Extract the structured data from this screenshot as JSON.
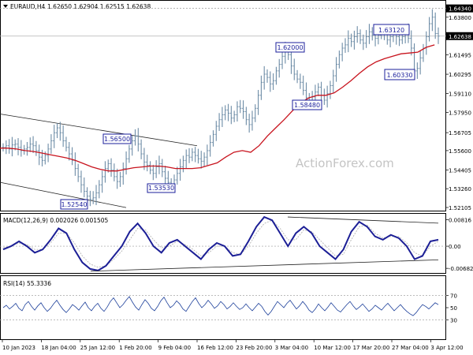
{
  "header": {
    "symbol": "EURAUD,H4",
    "ohlc": "1.62650 1.62904 1.62515 1.62638"
  },
  "watermark": "ActionForex.com",
  "chart_data": [
    {
      "type": "line",
      "name": "price",
      "xlabel": "",
      "ylabel": "",
      "ylim": [
        1.5196,
        1.6476
      ],
      "y_ticks": [
        "1.64340",
        "1.63800",
        "1.61495",
        "1.60295",
        "1.59110",
        "1.57950",
        "1.56705",
        "1.55600",
        "1.54405",
        "1.53260",
        "1.52105"
      ],
      "highlight_ticks": [
        "1.64340",
        "1.62638"
      ],
      "current_price": "1.62638",
      "current_price_value": 1.62638,
      "ref_level": 1.6434,
      "series": [
        {
          "values": [
            1.558,
            1.559,
            1.557,
            1.5595,
            1.56,
            1.558,
            1.556,
            1.557,
            1.558,
            1.56,
            1.559,
            1.556,
            1.552,
            1.55,
            1.553,
            1.557,
            1.562,
            1.567,
            1.57,
            1.567,
            1.562,
            1.558,
            1.554,
            1.55,
            1.545,
            1.54,
            1.535,
            1.531,
            1.528,
            1.526,
            1.527,
            1.53,
            1.535,
            1.54,
            1.545,
            1.548,
            1.544,
            1.54,
            1.537,
            1.54,
            1.545,
            1.551,
            1.557,
            1.562,
            1.565,
            1.56,
            1.554,
            1.549,
            1.547,
            1.544,
            1.542,
            1.546,
            1.548,
            1.543,
            1.539,
            1.5365,
            1.5355,
            1.538,
            1.542,
            1.546,
            1.55,
            1.553,
            1.552,
            1.555,
            1.553,
            1.551,
            1.5495,
            1.552,
            1.556,
            1.561,
            1.566,
            1.571,
            1.575,
            1.578,
            1.581,
            1.579,
            1.576,
            1.578,
            1.583,
            1.582,
            1.58,
            1.575,
            1.572,
            1.576,
            1.582,
            1.59,
            1.598,
            1.603,
            1.601,
            1.597,
            1.599,
            1.605,
            1.609,
            1.614,
            1.618,
            1.615,
            1.608,
            1.603,
            1.6,
            1.598,
            1.593,
            1.5885,
            1.586,
            1.589,
            1.592,
            1.595,
            1.59,
            1.587,
            1.591,
            1.596,
            1.602,
            1.609,
            1.615,
            1.619,
            1.621,
            1.625,
            1.623,
            1.626,
            1.628,
            1.624,
            1.622,
            1.626,
            1.629,
            1.627,
            1.625,
            1.627,
            1.63,
            1.628,
            1.624,
            1.626,
            1.628,
            1.626,
            1.624,
            1.626,
            1.63,
            1.625,
            1.619,
            1.605,
            1.6065,
            1.613,
            1.619,
            1.626,
            1.634,
            1.638,
            1.628,
            1.6264
          ]
        },
        {
          "name": "moving-average",
          "values": [
            1.5575,
            1.5575,
            1.557,
            1.556,
            1.5555,
            1.5545,
            1.5535,
            1.5525,
            1.5515,
            1.55,
            1.548,
            1.546,
            1.5445,
            1.5435,
            1.5435,
            1.5445,
            1.5455,
            1.546,
            1.5465,
            1.5465,
            1.546,
            1.545,
            1.545,
            1.545,
            1.5455,
            1.547,
            1.5485,
            1.552,
            1.555,
            1.556,
            1.555,
            1.559,
            1.565,
            1.57,
            1.575,
            1.5805,
            1.5855,
            1.5885,
            1.59,
            1.59,
            1.5915,
            1.595,
            1.599,
            1.6035,
            1.6075,
            1.6105,
            1.6125,
            1.614,
            1.6155,
            1.616,
            1.6165,
            1.6195,
            1.621
          ]
        }
      ],
      "ma_x_start": 0,
      "ma_x_step": 10.6,
      "channel": {
        "upper": [
          [
            0,
            1.5785
          ],
          [
            250,
            1.559
          ]
        ],
        "lower": [
          [
            0,
            1.5365
          ],
          [
            160,
            1.521
          ]
        ]
      },
      "annotations": [
        {
          "label": "1.63120",
          "price": 1.6312
        },
        {
          "label": "1.62000",
          "price": 1.62
        },
        {
          "label": "1.60330",
          "price": 1.6033
        },
        {
          "label": "1.58480",
          "price": 1.5848
        },
        {
          "label": "1.56500",
          "price": 1.565
        },
        {
          "label": "1.53530",
          "price": 1.5353
        },
        {
          "label": "1.52540",
          "price": 1.5254
        }
      ],
      "x_ticks": [
        "10 Jan 2023",
        "18 Jan 04:00",
        "25 Jan 12:00",
        "1 Feb 20:00",
        "9 Feb 04:00",
        "16 Feb 12:00",
        "23 Feb 20:00",
        "3 Mar 04:00",
        "10 Mar 12:00",
        "17 Mar 20:00",
        "27 Mar 04:00",
        "3 Apr 12:00"
      ]
    },
    {
      "type": "line",
      "name": "macd",
      "label": "MACD(12,26,9) 0.002026 0.001505",
      "ylim": [
        -0.008,
        0.0095
      ],
      "y_ticks": [
        "0.00816",
        "0.00",
        "-0.006821"
      ],
      "series": [
        {
          "values": [
            -0.001,
            0.0,
            0.0015,
            0.0,
            -0.002,
            -0.001,
            0.002,
            0.0055,
            0.004,
            -0.001,
            -0.005,
            -0.007,
            -0.0075,
            -0.006,
            -0.003,
            0.0,
            0.0045,
            0.007,
            0.004,
            0.0,
            -0.002,
            0.001,
            0.002,
            0.0,
            -0.002,
            -0.004,
            -0.001,
            0.001,
            0.0,
            -0.003,
            -0.0025,
            0.0015,
            0.006,
            0.009,
            0.008,
            0.004,
            0.0,
            0.004,
            0.006,
            0.004,
            0.0,
            -0.002,
            -0.004,
            -0.001,
            0.0045,
            0.0075,
            0.006,
            0.003,
            0.002,
            0.0035,
            0.0025,
            0.0,
            -0.004,
            -0.003,
            0.0015,
            0.002
          ]
        },
        {
          "values": [
            -0.0005,
            0.0,
            0.001,
            0.0005,
            -0.001,
            -0.001,
            0.001,
            0.004,
            0.004,
            0.001,
            -0.003,
            -0.0055,
            -0.0065,
            -0.006,
            -0.004,
            -0.0015,
            0.002,
            0.0055,
            0.005,
            0.002,
            -0.0005,
            0.0,
            0.0015,
            0.0005,
            -0.001,
            -0.003,
            -0.002,
            0.0,
            0.0,
            -0.002,
            -0.0025,
            0.0,
            0.004,
            0.007,
            0.008,
            0.0055,
            0.002,
            0.002,
            0.005,
            0.0045,
            0.002,
            -0.0005,
            -0.003,
            -0.0025,
            0.002,
            0.006,
            0.0065,
            0.004,
            0.0025,
            0.003,
            0.003,
            0.001,
            -0.002,
            -0.003,
            0.0,
            0.0015
          ]
        }
      ],
      "trendlines": [
        [
          [
            115,
            -0.0077
          ],
          [
            556,
            -0.0042
          ]
        ],
        [
          [
            365,
            0.009
          ],
          [
            556,
            0.0071
          ]
        ]
      ]
    },
    {
      "type": "line",
      "name": "rsi",
      "label": "RSI(14) 55.3336",
      "ylim": [
        0,
        100
      ],
      "y_ticks": [
        "70",
        "50",
        "30"
      ],
      "series": [
        {
          "values": [
            50,
            54,
            48,
            52,
            57,
            49,
            45,
            55,
            60,
            52,
            46,
            53,
            58,
            50,
            44,
            49,
            56,
            62,
            54,
            47,
            42,
            48,
            55,
            51,
            46,
            53,
            59,
            50,
            45,
            52,
            57,
            49,
            44,
            51,
            60,
            66,
            58,
            50,
            55,
            62,
            68,
            59,
            51,
            46,
            55,
            63,
            57,
            49,
            45,
            52,
            61,
            67,
            58,
            50,
            54,
            61,
            56,
            48,
            44,
            52,
            60,
            66,
            57,
            50,
            55,
            62,
            56,
            49,
            53,
            60,
            55,
            48,
            52,
            58,
            52,
            47,
            50,
            56,
            50,
            45,
            51,
            57,
            52,
            44,
            38,
            44,
            52,
            60,
            55,
            50,
            57,
            62,
            55,
            48,
            53,
            60,
            54,
            46,
            42,
            48,
            56,
            50,
            45,
            51,
            58,
            52,
            46,
            43,
            49,
            55,
            60,
            53,
            47,
            51,
            56,
            50,
            44,
            48,
            54,
            50,
            46,
            52,
            57,
            51,
            45,
            50,
            55,
            49,
            44,
            40,
            37,
            42,
            49,
            55,
            52,
            48,
            53,
            58,
            55
          ]
        }
      ]
    }
  ]
}
